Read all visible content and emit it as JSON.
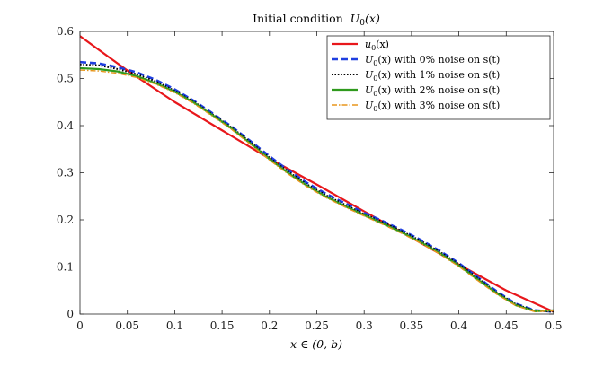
{
  "chart_data": {
    "type": "line",
    "title": "Initial condition U_0(x)",
    "title_parts": {
      "prefix": "Initial condition",
      "func": "U",
      "sub": "0",
      "arg": "(x)"
    },
    "xlabel": "x ∈ (0, b)",
    "ylabel": "",
    "xlim": [
      0,
      0.5
    ],
    "ylim": [
      0,
      0.6
    ],
    "xticks": [
      0,
      0.05,
      0.1,
      0.15,
      0.2,
      0.25,
      0.3,
      0.35,
      0.4,
      0.45,
      0.5
    ],
    "xtick_labels": [
      "0",
      "0.05",
      "0.1",
      "0.15",
      "0.2",
      "0.25",
      "0.3",
      "0.35",
      "0.4",
      "0.45",
      "0.5"
    ],
    "yticks": [
      0,
      0.1,
      0.2,
      0.3,
      0.4,
      0.5,
      0.6
    ],
    "ytick_labels": [
      "0",
      "0.1",
      "0.2",
      "0.3",
      "0.4",
      "0.5",
      "0.6"
    ],
    "legend_position": "top-right",
    "series": [
      {
        "name": "u_0(x)",
        "legend_func": "u",
        "legend_sub": "0",
        "legend_rest": "(x)",
        "color": "#e8171b",
        "dash": "",
        "width": 2.2,
        "x": [
          0,
          0.05,
          0.1,
          0.15,
          0.2,
          0.25,
          0.3,
          0.35,
          0.4,
          0.45,
          0.5
        ],
        "y": [
          0.59,
          0.517,
          0.45,
          0.39,
          0.33,
          0.275,
          0.218,
          0.162,
          0.105,
          0.05,
          0.005
        ]
      },
      {
        "name": "U_0(x) with 0% noise on s(t)",
        "legend_func": "U",
        "legend_sub": "0",
        "legend_rest": "(x) with 0% noise on s(t)",
        "color": "#1f3fe0",
        "dash": "7,4",
        "width": 2.6,
        "x": [
          0,
          0.02,
          0.04,
          0.06,
          0.08,
          0.1,
          0.12,
          0.14,
          0.16,
          0.18,
          0.2,
          0.22,
          0.24,
          0.26,
          0.28,
          0.3,
          0.32,
          0.34,
          0.36,
          0.38,
          0.4,
          0.42,
          0.44,
          0.46,
          0.48,
          0.5
        ],
        "y": [
          0.535,
          0.532,
          0.524,
          0.513,
          0.497,
          0.477,
          0.453,
          0.426,
          0.398,
          0.367,
          0.335,
          0.305,
          0.278,
          0.255,
          0.235,
          0.215,
          0.197,
          0.178,
          0.157,
          0.134,
          0.108,
          0.078,
          0.048,
          0.022,
          0.008,
          0.005
        ]
      },
      {
        "name": "U_0(x) with 1% noise on s(t)",
        "legend_func": "U",
        "legend_sub": "0",
        "legend_rest": "(x) with 1% noise on s(t)",
        "color": "#000000",
        "dash": "1.6,1.8",
        "width": 2.0,
        "x": [
          0,
          0.02,
          0.04,
          0.06,
          0.08,
          0.1,
          0.12,
          0.14,
          0.16,
          0.18,
          0.2,
          0.22,
          0.24,
          0.26,
          0.28,
          0.3,
          0.32,
          0.34,
          0.36,
          0.38,
          0.4,
          0.42,
          0.44,
          0.46,
          0.48,
          0.5
        ],
        "y": [
          0.53,
          0.528,
          0.52,
          0.509,
          0.494,
          0.474,
          0.451,
          0.424,
          0.396,
          0.365,
          0.332,
          0.302,
          0.275,
          0.252,
          0.232,
          0.212,
          0.195,
          0.176,
          0.155,
          0.132,
          0.106,
          0.076,
          0.046,
          0.021,
          0.007,
          0.005
        ]
      },
      {
        "name": "U_0(x) with 2% noise on s(t)",
        "legend_func": "U",
        "legend_sub": "0",
        "legend_rest": "(x) with 2% noise on s(t)",
        "color": "#2f9a1d",
        "dash": "",
        "width": 2.2,
        "x": [
          0,
          0.02,
          0.04,
          0.06,
          0.08,
          0.1,
          0.12,
          0.14,
          0.16,
          0.18,
          0.2,
          0.22,
          0.24,
          0.26,
          0.28,
          0.3,
          0.32,
          0.34,
          0.36,
          0.38,
          0.4,
          0.42,
          0.44,
          0.46,
          0.48,
          0.5
        ],
        "y": [
          0.522,
          0.52,
          0.515,
          0.505,
          0.49,
          0.472,
          0.449,
          0.422,
          0.394,
          0.362,
          0.329,
          0.299,
          0.272,
          0.249,
          0.229,
          0.21,
          0.192,
          0.173,
          0.152,
          0.129,
          0.103,
          0.073,
          0.044,
          0.019,
          0.006,
          0.008
        ]
      },
      {
        "name": "U_0(x) with 3% noise on s(t)",
        "legend_func": "U",
        "legend_sub": "0",
        "legend_rest": "(x) with 3% noise on s(t)",
        "color": "#e8961c",
        "dash": "6,2,1.5,2",
        "width": 1.4,
        "x": [
          0,
          0.02,
          0.04,
          0.06,
          0.08,
          0.1,
          0.12,
          0.14,
          0.16,
          0.18,
          0.2,
          0.22,
          0.24,
          0.26,
          0.28,
          0.3,
          0.32,
          0.34,
          0.36,
          0.38,
          0.4,
          0.42,
          0.44,
          0.46,
          0.48,
          0.5
        ],
        "y": [
          0.518,
          0.516,
          0.511,
          0.502,
          0.488,
          0.47,
          0.447,
          0.42,
          0.392,
          0.36,
          0.327,
          0.297,
          0.27,
          0.247,
          0.227,
          0.208,
          0.19,
          0.171,
          0.15,
          0.127,
          0.101,
          0.071,
          0.042,
          0.018,
          0.005,
          0.007
        ]
      }
    ]
  }
}
